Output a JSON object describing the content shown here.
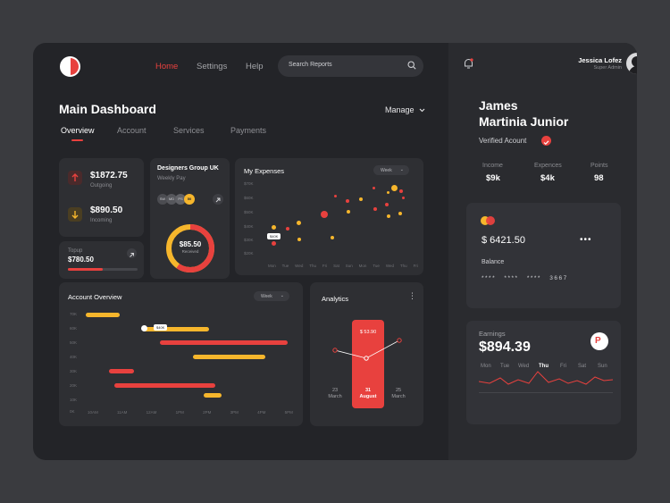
{
  "header": {
    "nav": [
      "Home",
      "Settings",
      "Help"
    ],
    "search_placeholder": "Search Reports"
  },
  "page": {
    "title": "Main Dashboard",
    "manage_label": "Manage",
    "tabs": [
      "Overview",
      "Account",
      "Services",
      "Payments"
    ]
  },
  "balance_card": {
    "outgoing_amount": "$1872.75",
    "outgoing_label": "Outgoing",
    "incoming_amount": "$890.50",
    "incoming_label": "Incoming"
  },
  "topup_card": {
    "label": "Topup",
    "amount": "$780.50",
    "progress": 0.5
  },
  "group_card": {
    "title": "Designers Group UK",
    "subtitle": "Weekly Pay",
    "avatars": [
      "SW",
      "MD",
      "PS",
      "50"
    ],
    "donut_value": "$85.50",
    "donut_label": "Received",
    "donut_fraction": 0.6
  },
  "expenses": {
    "title": "My Expenses",
    "filter": "Week",
    "y_ticks": [
      "$70K",
      "$60K",
      "$50K",
      "$40K",
      "$30K",
      "$20K"
    ],
    "x_ticks": [
      "Mon",
      "Tue",
      "Wed",
      "Thu",
      "Fri",
      "Sat",
      "Sun",
      "Mon",
      "Tue",
      "Wed",
      "Thu",
      "Fri"
    ],
    "tooltip": "$40K"
  },
  "account_overview": {
    "title": "Account Overview",
    "filter": "Week",
    "y_ticks": [
      "70K",
      "60K",
      "50K",
      "40K",
      "30K",
      "20K",
      "10K",
      "0K"
    ],
    "x_ticks": [
      "10AM",
      "11AM",
      "12AM",
      "1PM",
      "2PM",
      "3PM",
      "4PM",
      "5PM"
    ],
    "tooltip": "$40K"
  },
  "analytics": {
    "title": "Analytics",
    "highlight_value": "$ 53.90",
    "dates": [
      {
        "day": "23",
        "month": "March"
      },
      {
        "day": "31",
        "month": "August"
      },
      {
        "day": "25",
        "month": "March"
      }
    ]
  },
  "profile": {
    "user_name": "Jessica Lofez",
    "user_role": "Super Admin",
    "name_line1": "James",
    "name_line2": "Martinia Junior",
    "verified": "Verified Acount",
    "stats": [
      {
        "label": "Income",
        "value": "$9k"
      },
      {
        "label": "Expences",
        "value": "$4k"
      },
      {
        "label": "Points",
        "value": "98"
      }
    ]
  },
  "card": {
    "amount": "$ 6421.50",
    "balance_label": "Balance",
    "number": "**** **** **** 3667",
    "more": "•••"
  },
  "earnings": {
    "label": "Earnings",
    "amount": "$894.39",
    "days": [
      "Mon",
      "Tue",
      "Wed",
      "Thu",
      "Fri",
      "Sat",
      "Sun"
    ],
    "active_day": "Thu"
  },
  "colors": {
    "accent_red": "#e8413e",
    "accent_yellow": "#f6b62c",
    "panel": "#2e2f33"
  }
}
